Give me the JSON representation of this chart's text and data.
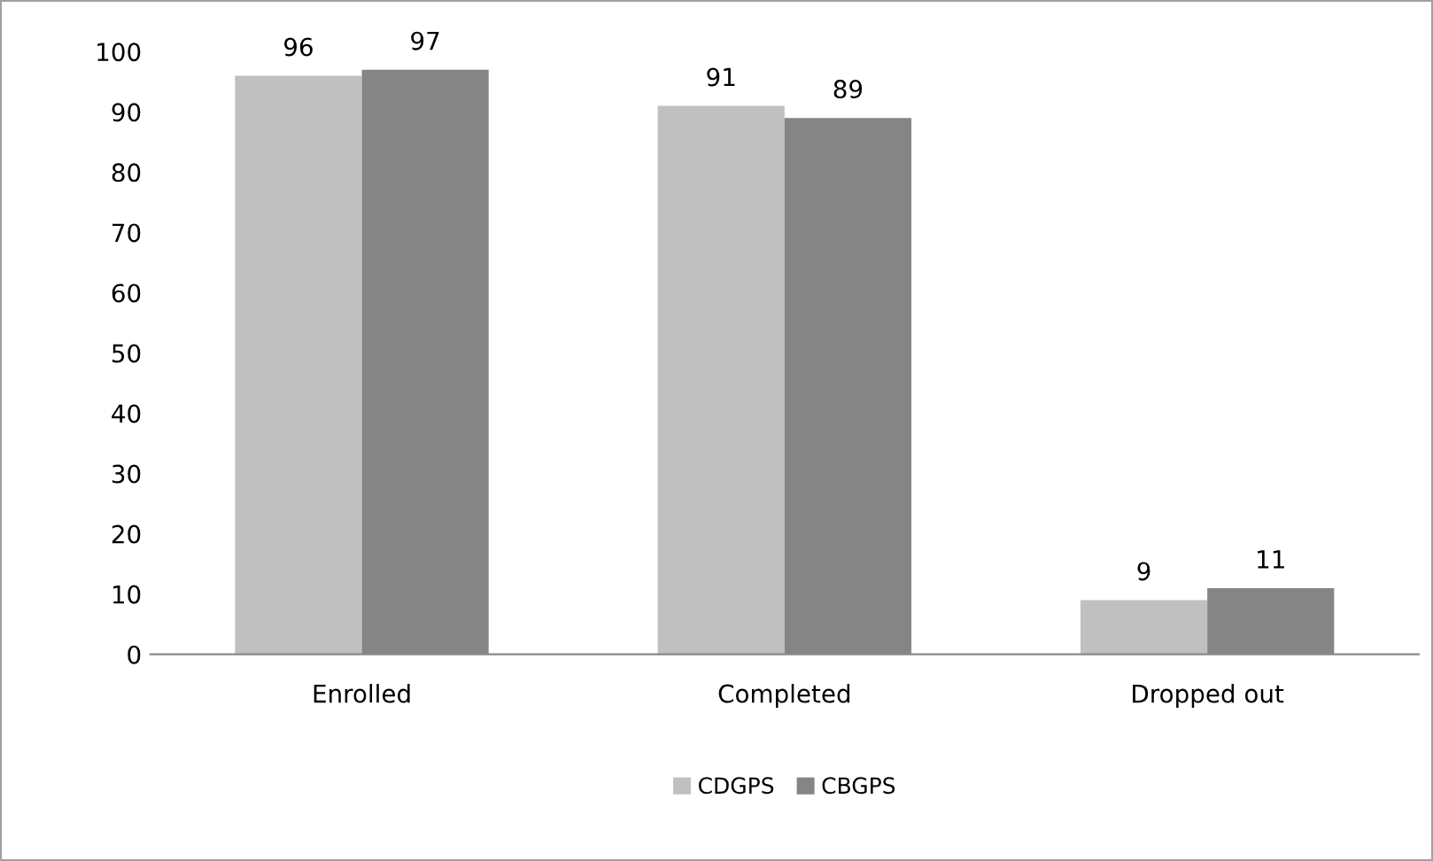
{
  "chart_data": {
    "type": "bar",
    "categories": [
      "Enrolled",
      "Completed",
      "Dropped out"
    ],
    "series": [
      {
        "name": "CDGPS",
        "color": "#c0c0c0",
        "values": [
          96,
          91,
          9
        ]
      },
      {
        "name": "CBGPS",
        "color": "#858585",
        "values": [
          97,
          89,
          11
        ]
      }
    ],
    "ylim": [
      0,
      100
    ],
    "yticks": [
      0,
      10,
      20,
      30,
      40,
      50,
      60,
      70,
      80,
      90,
      100
    ],
    "grid": false,
    "legend": "bottom",
    "data_labels": true
  }
}
